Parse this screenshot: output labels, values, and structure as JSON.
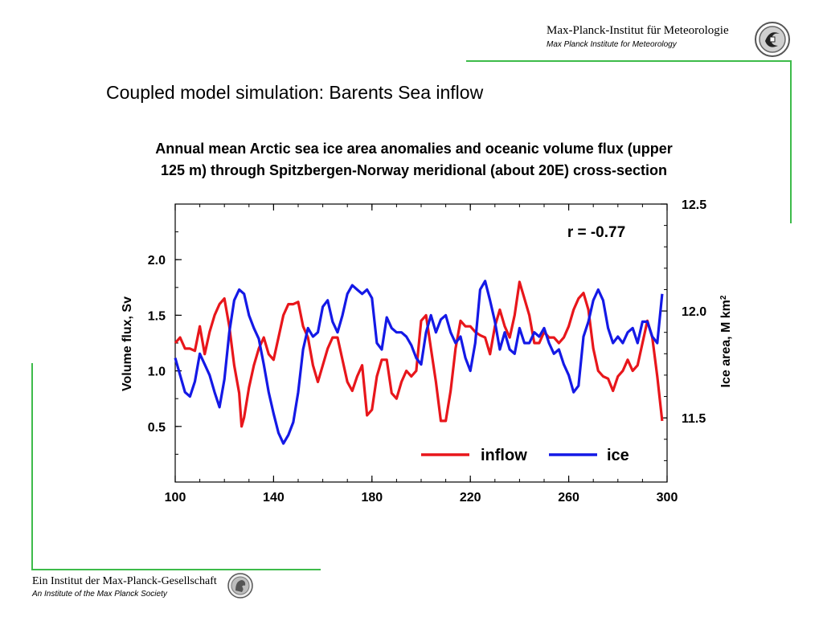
{
  "header": {
    "institute_de": "Max-Planck-Institut für Meteorologie",
    "institute_en": "Max Planck Institute for Meteorology",
    "logo_icon": "max-planck-meteorology-logo"
  },
  "slide": {
    "title": "Coupled model simulation: Barents Sea inflow",
    "chart_title_line1": "Annual mean Arctic sea ice area anomalies and oceanic volume flux (upper",
    "chart_title_line2": "125 m) through Spitzbergen-Norway meridional (about 20E) cross-section"
  },
  "footer": {
    "society_de": "Ein Institut der Max-Planck-Gesellschaft",
    "society_en": "An Institute of the Max Planck Society",
    "emblem_icon": "minerva-emblem-icon"
  },
  "colors": {
    "accent_rule": "#3dbb4a",
    "inflow": "#e8161b",
    "ice": "#1419e6"
  },
  "chart_data": {
    "type": "line",
    "xlim": [
      100,
      300
    ],
    "x_ticks": [
      "100",
      "140",
      "180",
      "220",
      "260",
      "300"
    ],
    "ylim": [
      0.0,
      2.5
    ],
    "y_ticks": [
      "0.5",
      "1.0",
      "1.5",
      "2.0"
    ],
    "ylabel": "Volume flux, Sv",
    "y2lim": [
      11.2,
      12.5
    ],
    "y2_ticks": [
      "11.5",
      "12.0",
      "12.5"
    ],
    "y2label": "Ice area, M km",
    "y2label_sup": "2",
    "annotation": "r = -0.77",
    "legend_position": "bottom-right",
    "series": [
      {
        "name": "inflow",
        "color": "#e8161b",
        "axis": "left",
        "x": [
          100,
          102,
          104,
          106,
          108,
          110,
          112,
          114,
          116,
          118,
          120,
          122,
          124,
          126,
          127,
          128,
          130,
          132,
          134,
          136,
          138,
          140,
          142,
          144,
          146,
          148,
          150,
          152,
          154,
          156,
          158,
          160,
          162,
          164,
          166,
          168,
          170,
          172,
          174,
          176,
          178,
          180,
          182,
          184,
          186,
          188,
          190,
          192,
          194,
          196,
          198,
          200,
          202,
          204,
          206,
          208,
          210,
          212,
          214,
          216,
          218,
          220,
          222,
          224,
          226,
          228,
          230,
          232,
          234,
          236,
          238,
          240,
          242,
          244,
          246,
          248,
          250,
          252,
          254,
          256,
          258,
          260,
          262,
          264,
          266,
          268,
          270,
          272,
          274,
          276,
          278,
          280,
          282,
          284,
          286,
          288,
          290,
          292,
          294,
          296,
          298
        ],
        "y": [
          1.25,
          1.3,
          1.2,
          1.2,
          1.18,
          1.4,
          1.15,
          1.35,
          1.5,
          1.6,
          1.65,
          1.4,
          1.05,
          0.8,
          0.5,
          0.58,
          0.85,
          1.05,
          1.2,
          1.3,
          1.15,
          1.1,
          1.3,
          1.5,
          1.6,
          1.6,
          1.62,
          1.4,
          1.3,
          1.05,
          0.9,
          1.05,
          1.2,
          1.3,
          1.3,
          1.1,
          0.9,
          0.82,
          0.95,
          1.05,
          0.6,
          0.65,
          0.95,
          1.1,
          1.1,
          0.8,
          0.75,
          0.9,
          1.0,
          0.95,
          1.0,
          1.45,
          1.5,
          1.2,
          0.9,
          0.55,
          0.55,
          0.82,
          1.2,
          1.45,
          1.4,
          1.4,
          1.35,
          1.32,
          1.3,
          1.15,
          1.4,
          1.55,
          1.4,
          1.3,
          1.5,
          1.8,
          1.65,
          1.5,
          1.25,
          1.25,
          1.35,
          1.3,
          1.3,
          1.25,
          1.3,
          1.4,
          1.55,
          1.65,
          1.7,
          1.55,
          1.2,
          1.0,
          0.95,
          0.93,
          0.82,
          0.95,
          1.0,
          1.1,
          1.0,
          1.05,
          1.25,
          1.45,
          1.3,
          0.95,
          0.55
        ]
      },
      {
        "name": "ice",
        "color": "#1419e6",
        "axis": "right",
        "x": [
          100,
          102,
          104,
          106,
          108,
          110,
          112,
          114,
          116,
          118,
          120,
          122,
          124,
          126,
          128,
          130,
          132,
          134,
          136,
          138,
          140,
          142,
          144,
          146,
          148,
          150,
          152,
          154,
          156,
          158,
          160,
          162,
          164,
          166,
          168,
          170,
          172,
          174,
          176,
          178,
          180,
          182,
          184,
          186,
          188,
          190,
          192,
          194,
          196,
          198,
          200,
          202,
          204,
          206,
          208,
          210,
          212,
          214,
          216,
          218,
          220,
          222,
          224,
          226,
          228,
          230,
          232,
          234,
          236,
          238,
          240,
          242,
          244,
          246,
          248,
          250,
          252,
          254,
          256,
          258,
          260,
          262,
          264,
          266,
          268,
          270,
          272,
          274,
          276,
          278,
          280,
          282,
          284,
          286,
          288,
          290,
          292,
          294,
          296,
          298
        ],
        "y": [
          11.78,
          11.7,
          11.62,
          11.6,
          11.67,
          11.8,
          11.75,
          11.7,
          11.62,
          11.55,
          11.68,
          11.9,
          12.05,
          12.1,
          12.08,
          11.98,
          11.92,
          11.87,
          11.75,
          11.62,
          11.52,
          11.43,
          11.38,
          11.42,
          11.48,
          11.62,
          11.82,
          11.92,
          11.88,
          11.9,
          12.02,
          12.05,
          11.95,
          11.9,
          11.98,
          12.08,
          12.12,
          12.1,
          12.08,
          12.1,
          12.06,
          11.85,
          11.82,
          11.97,
          11.92,
          11.9,
          11.9,
          11.88,
          11.84,
          11.78,
          11.75,
          11.9,
          11.98,
          11.9,
          11.96,
          11.98,
          11.9,
          11.85,
          11.88,
          11.78,
          11.72,
          11.85,
          12.1,
          12.14,
          12.05,
          11.95,
          11.82,
          11.9,
          11.82,
          11.8,
          11.92,
          11.85,
          11.85,
          11.9,
          11.88,
          11.92,
          11.85,
          11.8,
          11.82,
          11.75,
          11.7,
          11.62,
          11.65,
          11.88,
          11.95,
          12.05,
          12.1,
          12.05,
          11.92,
          11.85,
          11.88,
          11.85,
          11.9,
          11.92,
          11.85,
          11.95,
          11.95,
          11.88,
          11.85,
          12.08
        ]
      }
    ]
  }
}
